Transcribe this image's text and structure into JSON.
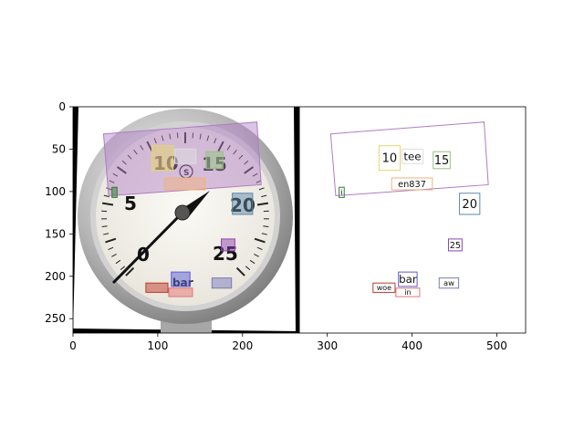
{
  "chart_data": {
    "type": "scatter",
    "title": "",
    "xlabel": "",
    "ylabel": "",
    "xlim": [
      0,
      535
    ],
    "ylim": [
      267,
      0
    ],
    "x_ticks": [
      0,
      100,
      200,
      300,
      400,
      500
    ],
    "y_ticks": [
      0,
      50,
      100,
      150,
      200,
      250
    ],
    "grid": false,
    "panel_left": {
      "content": "pressure gauge photograph",
      "dial_numbers": [
        "5",
        "10",
        "15",
        "20",
        "25",
        "0"
      ],
      "dial_marks": [
        "S",
        "bar"
      ]
    },
    "text_boxes": [
      {
        "text": "10",
        "x0": 361,
        "y0": 46,
        "x1": 386,
        "y1": 75,
        "color": "#e6d76a"
      },
      {
        "text": "tee",
        "x0": 388,
        "y0": 50,
        "x1": 413,
        "y1": 67,
        "color": "#dddddd"
      },
      {
        "text": "15",
        "x0": 425,
        "y0": 53,
        "x1": 445,
        "y1": 73,
        "color": "#93c47d"
      },
      {
        "text": "en837",
        "x0": 376,
        "y0": 84,
        "x1": 424,
        "y1": 98,
        "color": "#f0b27a"
      },
      {
        "text": "20",
        "x0": 456,
        "y0": 102,
        "x1": 480,
        "y1": 127,
        "color": "#5d8aa8"
      },
      {
        "text": "25",
        "x0": 443,
        "y0": 156,
        "x1": 459,
        "y1": 170,
        "color": "#8e44ad"
      },
      {
        "text": "bar",
        "x0": 384,
        "y0": 195,
        "x1": 406,
        "y1": 212,
        "color": "#5b5bd6"
      },
      {
        "text": "aw",
        "x0": 432,
        "y0": 202,
        "x1": 455,
        "y1": 214,
        "color": "#7a7ab8"
      },
      {
        "text": "woe",
        "x0": 354,
        "y0": 208,
        "x1": 380,
        "y1": 219,
        "color": "#c0392b"
      },
      {
        "text": "in",
        "x0": 381,
        "y0": 214,
        "x1": 409,
        "y1": 224,
        "color": "#e57373"
      },
      {
        "text": "i",
        "x0": 314,
        "y0": 95,
        "x1": 320,
        "y1": 107,
        "color": "#2e7d32"
      }
    ],
    "region": {
      "points": [
        [
          304,
          32
        ],
        [
          485,
          18
        ],
        [
          490,
          92
        ],
        [
          310,
          105
        ]
      ],
      "color": "#b07cc6"
    }
  }
}
